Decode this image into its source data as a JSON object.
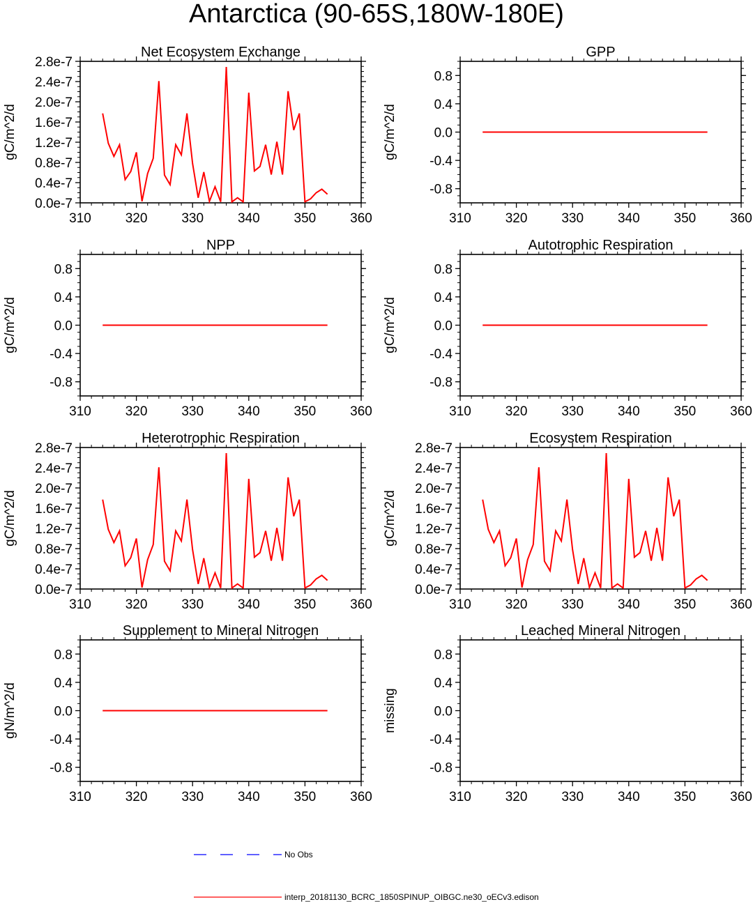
{
  "figure_title": "Antarctica (90-65S,180W-180E)",
  "colors": {
    "model": "#ff0000",
    "obs": "#0000ff",
    "axis": "#000000"
  },
  "legend": {
    "obs_label": "No Obs",
    "model_label": "interp_20181130_BCRC_1850SPINUP_OIBGC.ne30_oECv3.edison"
  },
  "chart_data": [
    {
      "type": "line",
      "title": "Net Ecosystem Exchange",
      "ylabel": "gC/m^2/d",
      "xlim": [
        310,
        360
      ],
      "xticks": [
        310,
        320,
        330,
        340,
        350,
        360
      ],
      "ylim": [
        0,
        2.8e-07
      ],
      "yticks": [
        "0.0e-7",
        "0.4e-7",
        "0.8e-7",
        "1.2e-7",
        "1.6e-7",
        "2.0e-7",
        "2.4e-7",
        "2.8e-7"
      ],
      "ytick_values": [
        0,
        4e-08,
        8e-08,
        1.2e-07,
        1.6e-07,
        2e-07,
        2.4e-07,
        2.8e-07
      ],
      "series": [
        {
          "name": "model",
          "x": [
            314,
            315,
            316,
            317,
            318,
            319,
            320,
            321,
            322,
            323,
            324,
            325,
            326,
            327,
            328,
            329,
            330,
            331,
            332,
            333,
            334,
            335,
            336,
            337,
            338,
            339,
            340,
            341,
            342,
            343,
            344,
            345,
            346,
            347,
            348,
            349,
            350,
            351,
            352,
            353,
            354
          ],
          "values": [
            1.77e-07,
            1.18e-07,
            9.2e-08,
            1.15e-07,
            4.6e-08,
            6.2e-08,
            1e-07,
            3e-09,
            5.8e-08,
            8.8e-08,
            2.41e-07,
            5.5e-08,
            3.6e-08,
            1.15e-07,
            9.5e-08,
            1.77e-07,
            7.8e-08,
            1e-08,
            6.1e-08,
            3e-09,
            3.2e-08,
            2e-09,
            2.69e-07,
            2e-09,
            1e-08,
            2e-09,
            2.18e-07,
            6.3e-08,
            7.2e-08,
            1.15e-07,
            5.6e-08,
            1.21e-07,
            5.6e-08,
            2.21e-07,
            1.44e-07,
            1.77e-07,
            2e-09,
            8e-09,
            2e-08,
            2.7e-08,
            1.7e-08
          ]
        }
      ]
    },
    {
      "type": "line",
      "title": "GPP",
      "ylabel": "gC/m^2/d",
      "xlim": [
        310,
        360
      ],
      "xticks": [
        310,
        320,
        330,
        340,
        350,
        360
      ],
      "ylim": [
        -1,
        1
      ],
      "yticks": [
        "-0.8",
        "-0.4",
        "0.0",
        "0.4",
        "0.8"
      ],
      "ytick_values": [
        -0.8,
        -0.4,
        0,
        0.4,
        0.8
      ],
      "series": [
        {
          "name": "model",
          "x": [
            314,
            354
          ],
          "values": [
            0,
            0
          ]
        }
      ]
    },
    {
      "type": "line",
      "title": "NPP",
      "ylabel": "gC/m^2/d",
      "xlim": [
        310,
        360
      ],
      "xticks": [
        310,
        320,
        330,
        340,
        350,
        360
      ],
      "ylim": [
        -1,
        1
      ],
      "yticks": [
        "-0.8",
        "-0.4",
        "0.0",
        "0.4",
        "0.8"
      ],
      "ytick_values": [
        -0.8,
        -0.4,
        0,
        0.4,
        0.8
      ],
      "series": [
        {
          "name": "model",
          "x": [
            314,
            354
          ],
          "values": [
            0,
            0
          ]
        }
      ]
    },
    {
      "type": "line",
      "title": "Autotrophic Respiration",
      "ylabel": "gC/m^2/d",
      "xlim": [
        310,
        360
      ],
      "xticks": [
        310,
        320,
        330,
        340,
        350,
        360
      ],
      "ylim": [
        -1,
        1
      ],
      "yticks": [
        "-0.8",
        "-0.4",
        "0.0",
        "0.4",
        "0.8"
      ],
      "ytick_values": [
        -0.8,
        -0.4,
        0,
        0.4,
        0.8
      ],
      "series": [
        {
          "name": "model",
          "x": [
            314,
            354
          ],
          "values": [
            0,
            0
          ]
        }
      ]
    },
    {
      "type": "line",
      "title": "Heterotrophic Respiration",
      "ylabel": "gC/m^2/d",
      "xlim": [
        310,
        360
      ],
      "xticks": [
        310,
        320,
        330,
        340,
        350,
        360
      ],
      "ylim": [
        0,
        2.8e-07
      ],
      "yticks": [
        "0.0e-7",
        "0.4e-7",
        "0.8e-7",
        "1.2e-7",
        "1.6e-7",
        "2.0e-7",
        "2.4e-7",
        "2.8e-7"
      ],
      "ytick_values": [
        0,
        4e-08,
        8e-08,
        1.2e-07,
        1.6e-07,
        2e-07,
        2.4e-07,
        2.8e-07
      ],
      "series": [
        {
          "name": "model",
          "x": [
            314,
            315,
            316,
            317,
            318,
            319,
            320,
            321,
            322,
            323,
            324,
            325,
            326,
            327,
            328,
            329,
            330,
            331,
            332,
            333,
            334,
            335,
            336,
            337,
            338,
            339,
            340,
            341,
            342,
            343,
            344,
            345,
            346,
            347,
            348,
            349,
            350,
            351,
            352,
            353,
            354
          ],
          "values": [
            1.77e-07,
            1.18e-07,
            9.2e-08,
            1.15e-07,
            4.6e-08,
            6.2e-08,
            1e-07,
            3e-09,
            5.8e-08,
            8.8e-08,
            2.41e-07,
            5.5e-08,
            3.6e-08,
            1.15e-07,
            9.5e-08,
            1.77e-07,
            7.8e-08,
            1e-08,
            6.1e-08,
            3e-09,
            3.2e-08,
            2e-09,
            2.69e-07,
            2e-09,
            1e-08,
            2e-09,
            2.18e-07,
            6.3e-08,
            7.2e-08,
            1.15e-07,
            5.6e-08,
            1.21e-07,
            5.6e-08,
            2.21e-07,
            1.44e-07,
            1.77e-07,
            2e-09,
            8e-09,
            2e-08,
            2.7e-08,
            1.7e-08
          ]
        }
      ]
    },
    {
      "type": "line",
      "title": "Ecosystem Respiration",
      "ylabel": "gC/m^2/d",
      "xlim": [
        310,
        360
      ],
      "xticks": [
        310,
        320,
        330,
        340,
        350,
        360
      ],
      "ylim": [
        0,
        2.8e-07
      ],
      "yticks": [
        "0.0e-7",
        "0.4e-7",
        "0.8e-7",
        "1.2e-7",
        "1.6e-7",
        "2.0e-7",
        "2.4e-7",
        "2.8e-7"
      ],
      "ytick_values": [
        0,
        4e-08,
        8e-08,
        1.2e-07,
        1.6e-07,
        2e-07,
        2.4e-07,
        2.8e-07
      ],
      "series": [
        {
          "name": "model",
          "x": [
            314,
            315,
            316,
            317,
            318,
            319,
            320,
            321,
            322,
            323,
            324,
            325,
            326,
            327,
            328,
            329,
            330,
            331,
            332,
            333,
            334,
            335,
            336,
            337,
            338,
            339,
            340,
            341,
            342,
            343,
            344,
            345,
            346,
            347,
            348,
            349,
            350,
            351,
            352,
            353,
            354
          ],
          "values": [
            1.77e-07,
            1.18e-07,
            9.2e-08,
            1.15e-07,
            4.6e-08,
            6.2e-08,
            1e-07,
            3e-09,
            5.8e-08,
            8.8e-08,
            2.41e-07,
            5.5e-08,
            3.6e-08,
            1.15e-07,
            9.5e-08,
            1.77e-07,
            7.8e-08,
            1e-08,
            6.1e-08,
            3e-09,
            3.2e-08,
            2e-09,
            2.69e-07,
            2e-09,
            1e-08,
            2e-09,
            2.18e-07,
            6.3e-08,
            7.2e-08,
            1.15e-07,
            5.6e-08,
            1.21e-07,
            5.6e-08,
            2.21e-07,
            1.44e-07,
            1.77e-07,
            2e-09,
            8e-09,
            2e-08,
            2.7e-08,
            1.7e-08
          ]
        }
      ]
    },
    {
      "type": "line",
      "title": "Supplement to Mineral Nitrogen",
      "ylabel": "gN/m^2/d",
      "xlim": [
        310,
        360
      ],
      "xticks": [
        310,
        320,
        330,
        340,
        350,
        360
      ],
      "ylim": [
        -1,
        1
      ],
      "yticks": [
        "-0.8",
        "-0.4",
        "0.0",
        "0.4",
        "0.8"
      ],
      "ytick_values": [
        -0.8,
        -0.4,
        0,
        0.4,
        0.8
      ],
      "series": [
        {
          "name": "model",
          "x": [
            314,
            354
          ],
          "values": [
            0,
            0
          ]
        }
      ]
    },
    {
      "type": "line",
      "title": "Leached Mineral Nitrogen",
      "ylabel": "missing",
      "xlim": [
        310,
        360
      ],
      "xticks": [
        310,
        320,
        330,
        340,
        350,
        360
      ],
      "ylim": [
        -1,
        1
      ],
      "yticks": [
        "-0.8",
        "-0.4",
        "0.0",
        "0.4",
        "0.8"
      ],
      "ytick_values": [
        -0.8,
        -0.4,
        0,
        0.4,
        0.8
      ],
      "series": []
    }
  ]
}
